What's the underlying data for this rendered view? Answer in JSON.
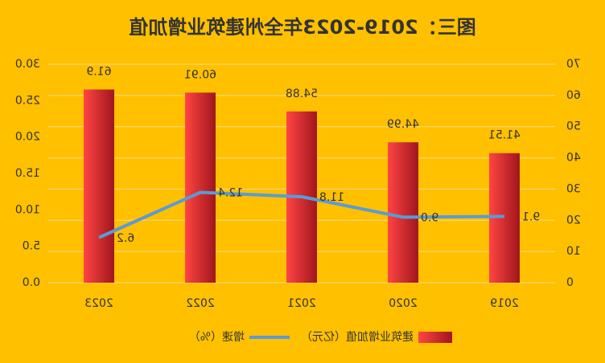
{
  "chart_data": {
    "type": "bar_line",
    "title": "图三：2019-2023年全州建筑业增加值",
    "categories": [
      "2019",
      "2020",
      "2021",
      "2022",
      "2023"
    ],
    "series": [
      {
        "name": "建筑业增加值（亿元）",
        "type": "bar",
        "color": "#e8383d",
        "values": [
          41.51,
          44.99,
          54.88,
          60.91,
          61.9
        ],
        "axis": "y"
      },
      {
        "name": "增速（%）",
        "type": "line",
        "color": "#5b9bd5",
        "values": [
          9.1,
          9.0,
          11.8,
          12.4,
          6.2
        ],
        "value_labels": [
          "9.1",
          "9.0",
          "11.8",
          "12.4",
          "6.2"
        ],
        "axis": "y2"
      }
    ],
    "ylim": [
      0,
      70
    ],
    "yticks": [
      0,
      10,
      20,
      30,
      40,
      50,
      60,
      70
    ],
    "y2lim": [
      0,
      30
    ],
    "y2ticks": [
      {
        "value": 0,
        "label": "0.0"
      },
      {
        "value": 5,
        "label": "5.0"
      },
      {
        "value": 10,
        "label": "10.0"
      },
      {
        "value": 15,
        "label": "15.0"
      },
      {
        "value": 20,
        "label": "20.0"
      },
      {
        "value": 25,
        "label": "25.0"
      },
      {
        "value": 30,
        "label": "30.0"
      }
    ],
    "grid": true,
    "mirrored": true
  }
}
